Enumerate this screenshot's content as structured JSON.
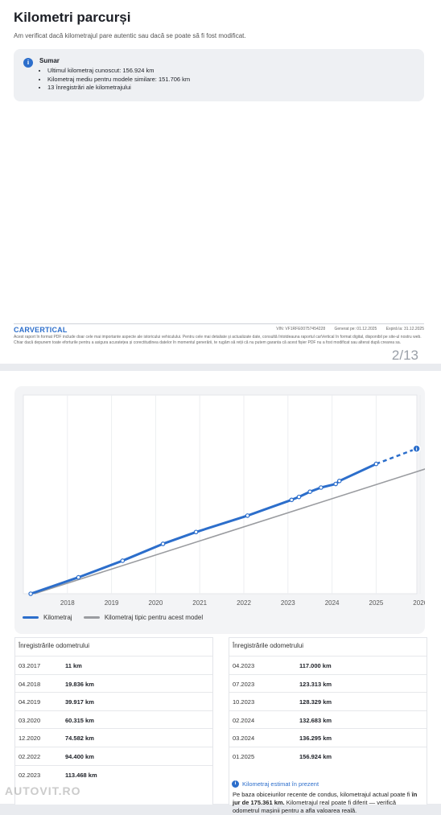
{
  "page1": {
    "title": "Kilometri parcurși",
    "subtitle": "Am verificat dacă kilometrajul pare autentic sau dacă se poate să fi fost modificat.",
    "summary": {
      "title": "Sumar",
      "items": [
        "Ultimul kilometraj cunoscut: 156.924 km",
        "Kilometraj mediu pentru modele similare: 151.706 km",
        "13 înregistrări ale kilometrajului"
      ]
    },
    "footer": {
      "logo": "CARVERTICAL",
      "vin": "VIN: VF1RFE00757454228",
      "generated": "Generat pe: 01.12.2025",
      "expires": "Expiră la: 31.12.2025",
      "disclaimer": "Acest raport în format PDF include doar cele mai importante aspecte ale istoricului vehiculului. Pentru cele mai detaliate și actualizate date, consultă întotdeauna raportul carVertical în format digital, disponibil pe site-ul nostru web. Chiar dacă depunem toate eforturile pentru a asigura acuratețea și corectitudinea datelor în momentul generării, te rugăm să reții că nu putem garanta că acest fișier PDF nu a fost modificat sau alterat după crearea sa.",
      "page_number": "2/13"
    }
  },
  "page2": {
    "legend": {
      "mileage": "Kilometraj",
      "typical": "Kilometraj tipic pentru acest model"
    },
    "table_left": {
      "title": "Înregistrările odometrului",
      "rows": [
        {
          "date": "03.2017",
          "km": "11 km"
        },
        {
          "date": "04.2018",
          "km": "19.836 km"
        },
        {
          "date": "04.2019",
          "km": "39.917 km"
        },
        {
          "date": "03.2020",
          "km": "60.315 km"
        },
        {
          "date": "12.2020",
          "km": "74.582 km"
        },
        {
          "date": "02.2022",
          "km": "94.400 km"
        },
        {
          "date": "02.2023",
          "km": "113.468 km"
        }
      ]
    },
    "table_right": {
      "title": "Înregistrările odometrului",
      "rows": [
        {
          "date": "04.2023",
          "km": "117.000 km"
        },
        {
          "date": "07.2023",
          "km": "123.313 km"
        },
        {
          "date": "10.2023",
          "km": "128.329 km"
        },
        {
          "date": "02.2024",
          "km": "132.683 km"
        },
        {
          "date": "03.2024",
          "km": "136.295 km"
        },
        {
          "date": "01.2025",
          "km": "156.924 km"
        }
      ],
      "estimate": {
        "title": "Kilometraj estimat în prezent",
        "text_before": "Pe baza obiceiurilor recente de condus, kilometrajul actual poate fi ",
        "text_bold": "în jur de 175.361 km.",
        "text_after": " Kilometrajul real poate fi diferit — verifică odometrul mașinii pentru a afla valoarea reală."
      }
    },
    "watermark": "AUTOVIT.RO"
  },
  "colors": {
    "accent": "#2c6ecb",
    "typical_line": "#9a9ca0",
    "card_bg": "#eef0f3"
  },
  "chart_data": {
    "type": "line",
    "x_tick_labels": [
      "2018",
      "2019",
      "2020",
      "2021",
      "2022",
      "2023",
      "2024",
      "2025",
      "2026"
    ],
    "series": [
      {
        "name": "Kilometraj",
        "points": [
          {
            "x": "2017-03",
            "y": 11
          },
          {
            "x": "2018-04",
            "y": 19836
          },
          {
            "x": "2019-04",
            "y": 39917
          },
          {
            "x": "2020-03",
            "y": 60315
          },
          {
            "x": "2020-12",
            "y": 74582
          },
          {
            "x": "2022-02",
            "y": 94400
          },
          {
            "x": "2023-02",
            "y": 113468
          },
          {
            "x": "2023-04",
            "y": 117000
          },
          {
            "x": "2023-07",
            "y": 123313
          },
          {
            "x": "2023-10",
            "y": 128329
          },
          {
            "x": "2024-02",
            "y": 132683
          },
          {
            "x": "2024-03",
            "y": 136295
          },
          {
            "x": "2025-01",
            "y": 156924
          }
        ],
        "estimate": {
          "x": "2025-12",
          "y": 175361
        }
      },
      {
        "name": "Kilometraj tipic pentru acest model",
        "points": [
          {
            "x": "2017-04",
            "y": 0
          },
          {
            "x": "2026-03",
            "y": 151706
          }
        ]
      }
    ]
  }
}
